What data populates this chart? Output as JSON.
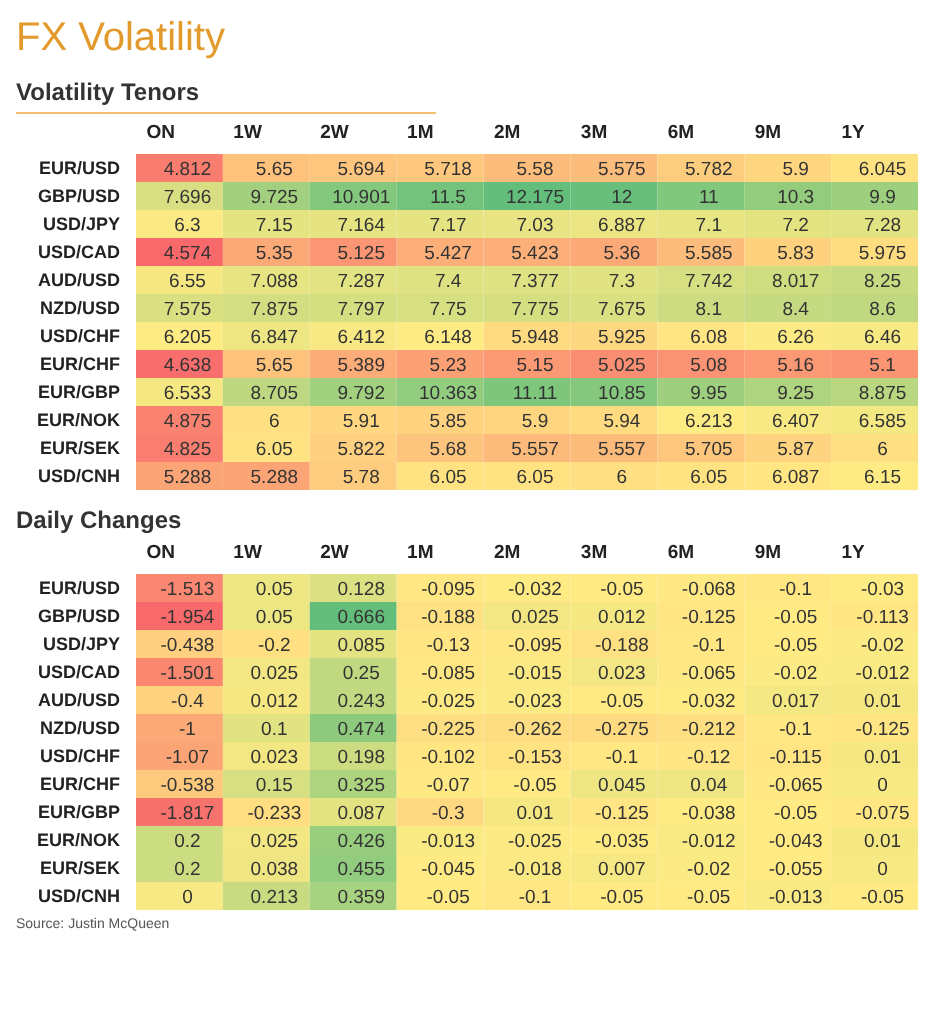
{
  "chart_data": [
    {
      "type": "heatmap",
      "data_labels": true,
      "title": "FX Volatility",
      "subtitle": "Volatility Tenors",
      "categories": [
        "ON",
        "1W",
        "2W",
        "1M",
        "2M",
        "3M",
        "6M",
        "9M",
        "1Y"
      ],
      "y_categories": [
        "EUR/USD",
        "GBP/USD",
        "USD/JPY",
        "USD/CAD",
        "AUD/USD",
        "NZD/USD",
        "USD/CHF",
        "EUR/CHF",
        "EUR/GBP",
        "EUR/NOK",
        "EUR/SEK",
        "USD/CNH"
      ],
      "cells": [
        [
          4.812,
          5.65,
          5.694,
          5.718,
          5.58,
          5.575,
          5.782,
          5.9,
          6.045
        ],
        [
          7.696,
          9.725,
          10.901,
          11.5,
          12.175,
          12,
          11,
          10.3,
          9.9
        ],
        [
          6.3,
          7.15,
          7.164,
          7.17,
          7.03,
          6.887,
          7.1,
          7.2,
          7.28
        ],
        [
          4.574,
          5.35,
          5.125,
          5.427,
          5.423,
          5.36,
          5.585,
          5.83,
          5.975
        ],
        [
          6.55,
          7.088,
          7.287,
          7.4,
          7.377,
          7.3,
          7.742,
          8.017,
          8.25
        ],
        [
          7.575,
          7.875,
          7.797,
          7.75,
          7.775,
          7.675,
          8.1,
          8.4,
          8.6
        ],
        [
          6.205,
          6.847,
          6.412,
          6.148,
          5.948,
          5.925,
          6.08,
          6.26,
          6.46
        ],
        [
          4.638,
          5.65,
          5.389,
          5.23,
          5.15,
          5.025,
          5.08,
          5.16,
          5.1
        ],
        [
          6.533,
          8.705,
          9.792,
          10.363,
          11.11,
          10.85,
          9.95,
          9.25,
          8.875
        ],
        [
          4.875,
          6,
          5.91,
          5.85,
          5.9,
          5.94,
          6.213,
          6.407,
          6.585
        ],
        [
          4.825,
          6.05,
          5.822,
          5.68,
          5.557,
          5.557,
          5.705,
          5.87,
          6
        ],
        [
          5.288,
          5.288,
          5.78,
          6.05,
          6.05,
          6,
          6.05,
          6.087,
          6.15
        ]
      ]
    },
    {
      "type": "heatmap",
      "data_labels": true,
      "title": "Daily Changes",
      "categories": [
        "ON",
        "1W",
        "2W",
        "1M",
        "2M",
        "3M",
        "6M",
        "9M",
        "1Y"
      ],
      "y_categories": [
        "EUR/USD",
        "GBP/USD",
        "USD/JPY",
        "USD/CAD",
        "AUD/USD",
        "NZD/USD",
        "USD/CHF",
        "EUR/CHF",
        "EUR/GBP",
        "EUR/NOK",
        "EUR/SEK",
        "USD/CNH"
      ],
      "cells": [
        [
          -1.513,
          0.05,
          0.128,
          -0.095,
          -0.032,
          -0.05,
          -0.068,
          -0.1,
          -0.03
        ],
        [
          -1.954,
          0.05,
          0.666,
          -0.188,
          0.025,
          0.012,
          -0.125,
          -0.05,
          -0.113
        ],
        [
          -0.438,
          -0.2,
          0.085,
          -0.13,
          -0.095,
          -0.188,
          -0.1,
          -0.05,
          -0.02
        ],
        [
          -1.501,
          0.025,
          0.25,
          -0.085,
          -0.015,
          0.023,
          -0.065,
          -0.02,
          -0.012
        ],
        [
          -0.4,
          0.012,
          0.243,
          -0.025,
          -0.023,
          -0.05,
          -0.032,
          0.017,
          0.01
        ],
        [
          -1,
          0.1,
          0.474,
          -0.225,
          -0.262,
          -0.275,
          -0.212,
          -0.1,
          -0.125
        ],
        [
          -1.07,
          0.023,
          0.198,
          -0.102,
          -0.153,
          -0.1,
          -0.12,
          -0.115,
          0.01
        ],
        [
          -0.538,
          0.15,
          0.325,
          -0.07,
          -0.05,
          0.045,
          0.04,
          -0.065,
          0
        ],
        [
          -1.817,
          -0.233,
          0.087,
          -0.3,
          0.01,
          -0.125,
          -0.038,
          -0.05,
          -0.075
        ],
        [
          0.2,
          0.025,
          0.426,
          -0.013,
          -0.025,
          -0.035,
          -0.012,
          -0.043,
          0.01
        ],
        [
          0.2,
          0.038,
          0.455,
          -0.045,
          -0.018,
          0.007,
          -0.02,
          -0.055,
          0
        ],
        [
          0,
          0.213,
          0.359,
          -0.05,
          -0.1,
          -0.05,
          -0.05,
          -0.013,
          -0.05
        ]
      ],
      "annotations": [
        "Source: Justin McQueen"
      ]
    }
  ]
}
